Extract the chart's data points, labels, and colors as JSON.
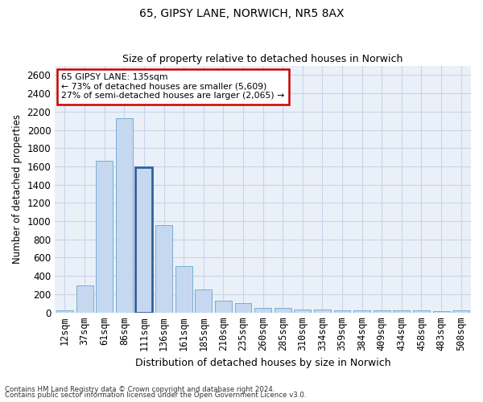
{
  "title1": "65, GIPSY LANE, NORWICH, NR5 8AX",
  "title2": "Size of property relative to detached houses in Norwich",
  "xlabel": "Distribution of detached houses by size in Norwich",
  "ylabel": "Number of detached properties",
  "categories": [
    "12sqm",
    "37sqm",
    "61sqm",
    "86sqm",
    "111sqm",
    "136sqm",
    "161sqm",
    "185sqm",
    "210sqm",
    "235sqm",
    "260sqm",
    "285sqm",
    "310sqm",
    "334sqm",
    "359sqm",
    "384sqm",
    "409sqm",
    "434sqm",
    "458sqm",
    "483sqm",
    "508sqm"
  ],
  "values": [
    25,
    300,
    1660,
    2130,
    1590,
    955,
    505,
    250,
    125,
    100,
    50,
    50,
    35,
    35,
    20,
    25,
    25,
    20,
    20,
    10,
    25
  ],
  "bar_color": "#c5d8ef",
  "bar_edge_color": "#7aadd4",
  "highlight_bar_index": 4,
  "highlight_bar_edge_color": "#3060a0",
  "annotation_title": "65 GIPSY LANE: 135sqm",
  "annotation_line1": "← 73% of detached houses are smaller (5,609)",
  "annotation_line2": "27% of semi-detached houses are larger (2,065) →",
  "annotation_box_color": "#ffffff",
  "annotation_border_color": "#cc0000",
  "grid_color": "#c8d4e8",
  "bg_color": "#eaf0f8",
  "ylim": [
    0,
    2700
  ],
  "yticks": [
    0,
    200,
    400,
    600,
    800,
    1000,
    1200,
    1400,
    1600,
    1800,
    2000,
    2200,
    2400,
    2600
  ],
  "footnote1": "Contains HM Land Registry data © Crown copyright and database right 2024.",
  "footnote2": "Contains public sector information licensed under the Open Government Licence v3.0."
}
